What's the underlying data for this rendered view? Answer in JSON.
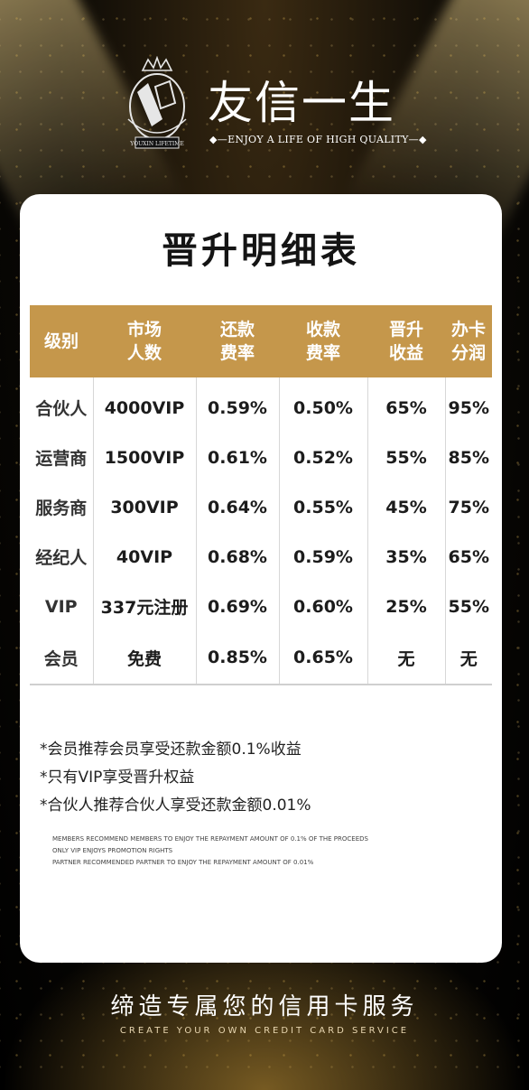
{
  "brand": {
    "name": "友信一生",
    "tagline": "ENJOY A LIFE OF HIGH QUALITY",
    "logo_text": "YOUXIN LIFETIME"
  },
  "card": {
    "title": "晋升明细表",
    "table": {
      "headers": [
        "级别",
        "市场\n人数",
        "还款\n费率",
        "收款\n费率",
        "晋升\n收益",
        "办卡\n分润"
      ],
      "rows": [
        [
          "合伙人",
          "4000VIP",
          "0.59%",
          "0.50%",
          "65%",
          "95%"
        ],
        [
          "运营商",
          "1500VIP",
          "0.61%",
          "0.52%",
          "55%",
          "85%"
        ],
        [
          "服务商",
          "300VIP",
          "0.64%",
          "0.55%",
          "45%",
          "75%"
        ],
        [
          "经纪人",
          "40VIP",
          "0.68%",
          "0.59%",
          "35%",
          "65%"
        ],
        [
          "VIP",
          "337元注册",
          "0.69%",
          "0.60%",
          "25%",
          "55%"
        ],
        [
          "会员",
          "免费",
          "0.85%",
          "0.65%",
          "无",
          "无"
        ]
      ]
    },
    "notes": [
      "*会员推荐会员享受还款金额0.1%收益",
      "*只有VIP享受晋升权益",
      "*合伙人推荐合伙人享受还款金额0.01%"
    ],
    "notes_en": [
      "MEMBERS RECOMMEND MEMBERS TO ENJOY THE REPAYMENT AMOUNT OF 0.1% OF THE PROCEEDS",
      "ONLY VIP ENJOYS PROMOTION RIGHTS",
      "PARTNER RECOMMENDED PARTNER TO ENJOY THE REPAYMENT AMOUNT OF 0.01%"
    ]
  },
  "footer": {
    "slogan": "缔造专属您的信用卡服务",
    "slogan_en": "CREATE YOUR OWN CREDIT CARD SERVICE"
  },
  "colors": {
    "accent_gold": "#c5974b",
    "background": "#000000"
  }
}
